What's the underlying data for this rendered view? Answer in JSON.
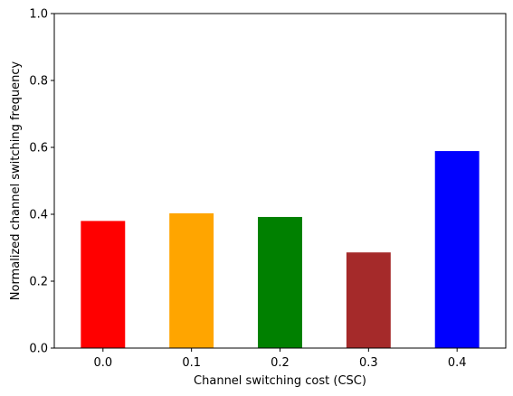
{
  "chart_data": {
    "type": "bar",
    "title": "",
    "xlabel": "Channel switching cost (CSC)",
    "ylabel": "Normalized channel switching frequency",
    "categories": [
      "0.0",
      "0.1",
      "0.2",
      "0.3",
      "0.4"
    ],
    "values": [
      0.38,
      0.403,
      0.392,
      0.286,
      0.589
    ],
    "colors": [
      "#ff0000",
      "#ffa500",
      "#008000",
      "#a52a2a",
      "#0000ff"
    ],
    "ylim": [
      0,
      1.0
    ],
    "yticks": [
      "0.0",
      "0.2",
      "0.4",
      "0.6",
      "0.8",
      "1.0"
    ],
    "grid": false,
    "legend": "none"
  }
}
